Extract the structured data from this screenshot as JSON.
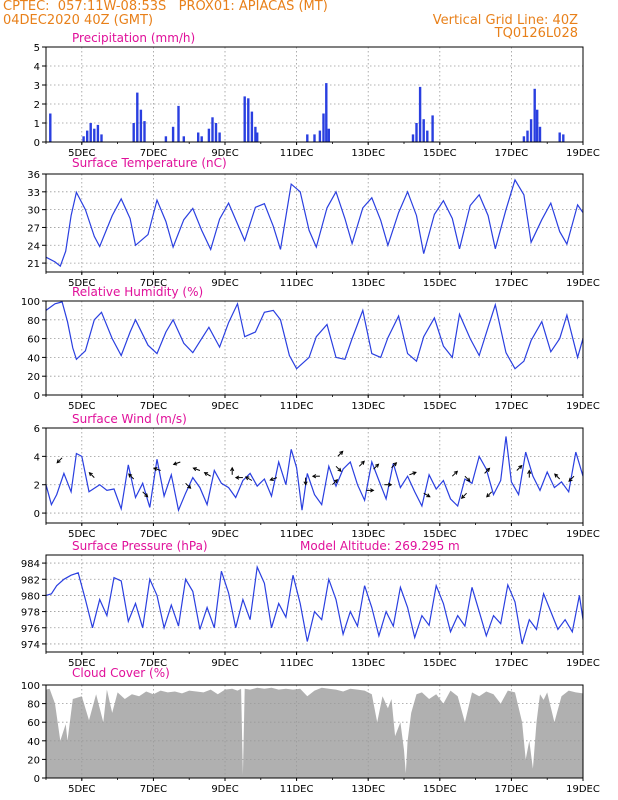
{
  "header": {
    "line1": "CPTEC:  057:11W-08:53S   PROX01: APIACAS (MT)",
    "line2": "04DEC2020 40Z (GMT)",
    "grid_note": "Vertical Grid Line: 40Z",
    "code": "TQ0126L028"
  },
  "colors": {
    "header": "#e8801a",
    "title": "#e0109a",
    "line": "#2a3fe0",
    "cloud": "#b0b0b0"
  },
  "chart_data": [
    {
      "type": "bar",
      "title": "Precipitation (mm/h)",
      "x_ticks": [
        "5DEC",
        "7DEC",
        "9DEC",
        "11DEC",
        "13DEC",
        "15DEC",
        "17DEC",
        "19DEC"
      ],
      "xlim_days": [
        4.0,
        19.0
      ],
      "ylim": [
        0,
        5
      ],
      "y_ticks": [
        "0",
        "1",
        "2",
        "3",
        "4",
        "5"
      ],
      "events": [
        {
          "day": 4.12,
          "value": 1.5
        },
        {
          "day": 5.05,
          "value": 0.3
        },
        {
          "day": 5.15,
          "value": 0.6
        },
        {
          "day": 5.25,
          "value": 1.0
        },
        {
          "day": 5.35,
          "value": 0.7
        },
        {
          "day": 5.45,
          "value": 0.9
        },
        {
          "day": 5.55,
          "value": 0.4
        },
        {
          "day": 6.45,
          "value": 1.0
        },
        {
          "day": 6.55,
          "value": 2.6
        },
        {
          "day": 6.65,
          "value": 1.7
        },
        {
          "day": 6.75,
          "value": 1.1
        },
        {
          "day": 7.35,
          "value": 0.3
        },
        {
          "day": 7.55,
          "value": 0.8
        },
        {
          "day": 7.7,
          "value": 1.9
        },
        {
          "day": 7.85,
          "value": 0.3
        },
        {
          "day": 8.25,
          "value": 0.5
        },
        {
          "day": 8.35,
          "value": 0.3
        },
        {
          "day": 8.55,
          "value": 0.7
        },
        {
          "day": 8.65,
          "value": 1.3
        },
        {
          "day": 8.75,
          "value": 1.0
        },
        {
          "day": 8.85,
          "value": 0.5
        },
        {
          "day": 9.55,
          "value": 2.4
        },
        {
          "day": 9.65,
          "value": 2.3
        },
        {
          "day": 9.75,
          "value": 1.6
        },
        {
          "day": 9.85,
          "value": 0.8
        },
        {
          "day": 9.9,
          "value": 0.5
        },
        {
          "day": 11.3,
          "value": 0.4
        },
        {
          "day": 11.5,
          "value": 0.4
        },
        {
          "day": 11.65,
          "value": 0.6
        },
        {
          "day": 11.75,
          "value": 1.5
        },
        {
          "day": 11.83,
          "value": 3.1
        },
        {
          "day": 11.9,
          "value": 0.7
        },
        {
          "day": 14.25,
          "value": 0.4
        },
        {
          "day": 14.35,
          "value": 1.0
        },
        {
          "day": 14.45,
          "value": 2.9
        },
        {
          "day": 14.55,
          "value": 1.2
        },
        {
          "day": 14.65,
          "value": 0.6
        },
        {
          "day": 14.8,
          "value": 1.4
        },
        {
          "day": 17.35,
          "value": 0.3
        },
        {
          "day": 17.45,
          "value": 0.6
        },
        {
          "day": 17.55,
          "value": 1.2
        },
        {
          "day": 17.65,
          "value": 2.8
        },
        {
          "day": 17.72,
          "value": 1.7
        },
        {
          "day": 17.8,
          "value": 0.8
        },
        {
          "day": 18.35,
          "value": 0.5
        },
        {
          "day": 18.45,
          "value": 0.4
        }
      ]
    },
    {
      "type": "line",
      "title": "Surface Temperature (nC)",
      "x_ticks": [
        "5DEC",
        "7DEC",
        "9DEC",
        "11DEC",
        "13DEC",
        "15DEC",
        "17DEC",
        "19DEC"
      ],
      "xlim_days": [
        4.0,
        19.0
      ],
      "ylim": [
        19.5,
        36
      ],
      "y_ticks": [
        "21",
        "24",
        "27",
        "30",
        "33",
        "36"
      ],
      "days": [
        4.0,
        4.25,
        4.4,
        4.55,
        4.7,
        4.85,
        5.1,
        5.35,
        5.5,
        5.85,
        6.1,
        6.35,
        6.5,
        6.85,
        7.1,
        7.35,
        7.55,
        7.85,
        8.1,
        8.35,
        8.6,
        8.85,
        9.1,
        9.35,
        9.55,
        9.85,
        10.1,
        10.35,
        10.55,
        10.85,
        11.1,
        11.35,
        11.55,
        11.85,
        12.1,
        12.35,
        12.55,
        12.85,
        13.1,
        13.35,
        13.55,
        13.85,
        14.1,
        14.35,
        14.55,
        14.85,
        15.1,
        15.35,
        15.55,
        15.85,
        16.1,
        16.35,
        16.55,
        16.85,
        17.1,
        17.35,
        17.55,
        17.85,
        18.1,
        18.35,
        18.55,
        18.85,
        19.0
      ],
      "values": [
        22.0,
        21.2,
        20.5,
        23.0,
        29.0,
        32.9,
        30.0,
        25.5,
        23.8,
        29.0,
        31.8,
        28.5,
        24.0,
        25.8,
        31.6,
        28.0,
        23.7,
        28.3,
        30.2,
        26.5,
        23.3,
        28.4,
        31.1,
        27.6,
        24.8,
        30.4,
        31.0,
        27.2,
        23.3,
        34.3,
        33.0,
        26.5,
        23.7,
        30.3,
        33.0,
        28.5,
        24.3,
        30.3,
        32.0,
        28.2,
        24.0,
        29.5,
        33.0,
        29.0,
        22.6,
        29.2,
        31.5,
        28.5,
        23.4,
        30.7,
        32.5,
        29.0,
        23.4,
        30.0,
        35.0,
        32.5,
        24.5,
        28.3,
        31.1,
        26.3,
        24.2,
        30.8,
        29.5
      ]
    },
    {
      "type": "line",
      "title": "Relative Humidity (%)",
      "x_ticks": [
        "5DEC",
        "7DEC",
        "9DEC",
        "11DEC",
        "13DEC",
        "15DEC",
        "17DEC",
        "19DEC"
      ],
      "xlim_days": [
        4.0,
        19.0
      ],
      "ylim": [
        0,
        100
      ],
      "y_ticks": [
        "0",
        "20",
        "40",
        "60",
        "80",
        "100"
      ],
      "days": [
        4.0,
        4.25,
        4.45,
        4.6,
        4.75,
        4.85,
        5.1,
        5.35,
        5.55,
        5.85,
        6.1,
        6.35,
        6.5,
        6.85,
        7.1,
        7.35,
        7.55,
        7.85,
        8.1,
        8.35,
        8.55,
        8.85,
        9.1,
        9.35,
        9.55,
        9.85,
        10.1,
        10.35,
        10.55,
        10.8,
        11.0,
        11.35,
        11.55,
        11.85,
        12.1,
        12.35,
        12.55,
        12.85,
        13.1,
        13.35,
        13.55,
        13.85,
        14.1,
        14.35,
        14.55,
        14.85,
        15.1,
        15.35,
        15.55,
        15.85,
        16.1,
        16.35,
        16.55,
        16.85,
        17.1,
        17.35,
        17.55,
        17.85,
        18.1,
        18.35,
        18.55,
        18.85,
        19.0
      ],
      "values": [
        90,
        97,
        99,
        78,
        50,
        38,
        47,
        80,
        88,
        60,
        42,
        67,
        80,
        53,
        44,
        67,
        80,
        55,
        45,
        60,
        72,
        51,
        77,
        97,
        62,
        67,
        88,
        90,
        80,
        42,
        28,
        40,
        62,
        75,
        40,
        38,
        60,
        90,
        44,
        40,
        61,
        84,
        44,
        36,
        62,
        82,
        52,
        40,
        86,
        60,
        42,
        72,
        96,
        45,
        28,
        36,
        58,
        78,
        46,
        60,
        85,
        40,
        60
      ]
    },
    {
      "type": "line",
      "title": "Surface Wind (m/s)",
      "x_ticks": [
        "5DEC",
        "7DEC",
        "9DEC",
        "11DEC",
        "13DEC",
        "15DEC",
        "17DEC",
        "19DEC"
      ],
      "xlim_days": [
        4.0,
        19.0
      ],
      "ylim": [
        -0.7,
        6
      ],
      "y_ticks": [
        "0",
        "2",
        "4",
        "6"
      ],
      "days": [
        4.0,
        4.15,
        4.3,
        4.5,
        4.7,
        4.85,
        5.0,
        5.2,
        5.5,
        5.7,
        5.9,
        6.1,
        6.3,
        6.5,
        6.7,
        6.9,
        7.1,
        7.3,
        7.5,
        7.7,
        7.9,
        8.1,
        8.3,
        8.5,
        8.7,
        8.9,
        9.1,
        9.3,
        9.5,
        9.7,
        9.9,
        10.1,
        10.3,
        10.5,
        10.7,
        10.85,
        11.0,
        11.15,
        11.3,
        11.5,
        11.7,
        11.9,
        12.1,
        12.3,
        12.5,
        12.7,
        12.9,
        13.1,
        13.3,
        13.5,
        13.7,
        13.9,
        14.1,
        14.3,
        14.5,
        14.7,
        14.9,
        15.1,
        15.3,
        15.5,
        15.7,
        15.9,
        16.1,
        16.3,
        16.5,
        16.7,
        16.85,
        17.0,
        17.2,
        17.4,
        17.6,
        17.8,
        18.0,
        18.2,
        18.4,
        18.6,
        18.8,
        19.0
      ],
      "values": [
        2.0,
        0.6,
        1.3,
        2.8,
        1.5,
        4.2,
        4.0,
        1.5,
        2.0,
        1.6,
        1.7,
        0.3,
        3.4,
        1.1,
        2.1,
        0.4,
        3.8,
        1.2,
        2.7,
        0.2,
        1.4,
        2.5,
        1.8,
        0.6,
        3.0,
        2.1,
        1.8,
        1.1,
        2.3,
        2.8,
        1.9,
        2.4,
        1.2,
        3.6,
        2.0,
        4.5,
        3.2,
        0.2,
        2.8,
        1.3,
        0.6,
        3.3,
        1.9,
        3.1,
        3.6,
        2.0,
        0.9,
        3.6,
        2.3,
        1.0,
        3.5,
        1.8,
        2.6,
        1.5,
        0.5,
        2.7,
        1.7,
        2.3,
        1.0,
        0.5,
        2.4,
        2.1,
        4.0,
        3.1,
        1.3,
        2.3,
        5.4,
        2.2,
        1.3,
        4.3,
        2.6,
        1.6,
        2.9,
        1.8,
        2.2,
        1.5,
        4.3,
        2.6
      ]
    },
    {
      "type": "line",
      "title": "Surface Pressure (hPa)",
      "annotation": "Model Altitude: 269.295 m",
      "x_ticks": [
        "5DEC",
        "7DEC",
        "9DEC",
        "11DEC",
        "13DEC",
        "15DEC",
        "17DEC",
        "19DEC"
      ],
      "xlim_days": [
        4.0,
        19.0
      ],
      "ylim": [
        973,
        985
      ],
      "y_ticks": [
        "974",
        "976",
        "978",
        "980",
        "982",
        "984"
      ],
      "days": [
        4.0,
        4.15,
        4.3,
        4.5,
        4.7,
        4.9,
        5.1,
        5.3,
        5.5,
        5.7,
        5.9,
        6.1,
        6.3,
        6.5,
        6.7,
        6.9,
        7.1,
        7.3,
        7.5,
        7.7,
        7.9,
        8.1,
        8.3,
        8.5,
        8.7,
        8.9,
        9.1,
        9.3,
        9.5,
        9.7,
        9.9,
        10.1,
        10.3,
        10.5,
        10.7,
        10.9,
        11.1,
        11.3,
        11.5,
        11.7,
        11.9,
        12.1,
        12.3,
        12.5,
        12.7,
        12.9,
        13.1,
        13.3,
        13.5,
        13.7,
        13.9,
        14.1,
        14.3,
        14.5,
        14.7,
        14.9,
        15.1,
        15.3,
        15.5,
        15.7,
        15.9,
        16.1,
        16.3,
        16.5,
        16.7,
        16.9,
        17.1,
        17.3,
        17.5,
        17.7,
        17.9,
        18.1,
        18.3,
        18.5,
        18.7,
        18.9,
        19.0
      ],
      "values": [
        980,
        980.2,
        981.2,
        982.0,
        982.5,
        982.8,
        979.5,
        976.0,
        979.5,
        977.5,
        982.2,
        981.8,
        976.8,
        979.0,
        976.0,
        982.0,
        980.0,
        976.0,
        978.8,
        976.2,
        982.0,
        980.5,
        975.8,
        978.5,
        976.0,
        983.0,
        980.3,
        976.0,
        979.5,
        977.0,
        983.5,
        981.5,
        976.0,
        979.0,
        977.3,
        982.5,
        979.0,
        974.3,
        978.0,
        977.0,
        982.0,
        979.5,
        975.2,
        978.0,
        976.2,
        981.2,
        978.5,
        975.0,
        978.0,
        976.2,
        981.0,
        978.5,
        974.8,
        977.5,
        976.3,
        981.2,
        979.0,
        975.5,
        977.5,
        976.2,
        981.0,
        978.0,
        975.0,
        977.5,
        976.5,
        981.3,
        979.2,
        974.0,
        977.0,
        975.8,
        980.2,
        978.0,
        975.8,
        977.0,
        975.5,
        980.0,
        977.0
      ]
    },
    {
      "type": "area",
      "title": "Cloud Cover (%)",
      "x_ticks": [
        "5DEC",
        "7DEC",
        "9DEC",
        "11DEC",
        "13DEC",
        "15DEC",
        "17DEC",
        "19DEC"
      ],
      "xlim_days": [
        4.0,
        19.0
      ],
      "ylim": [
        0,
        100
      ],
      "y_ticks": [
        "0",
        "20",
        "40",
        "60",
        "80",
        "100"
      ],
      "days": [
        4.0,
        4.1,
        4.25,
        4.4,
        4.55,
        4.6,
        4.75,
        5.0,
        5.2,
        5.4,
        5.6,
        5.7,
        5.85,
        6.0,
        6.2,
        6.4,
        6.6,
        6.8,
        7.0,
        7.2,
        7.4,
        7.6,
        7.8,
        8.0,
        8.2,
        8.4,
        8.6,
        8.8,
        9.0,
        9.2,
        9.35,
        9.45,
        9.5,
        9.55,
        9.7,
        9.9,
        10.1,
        10.3,
        10.5,
        10.7,
        10.9,
        11.1,
        11.3,
        11.5,
        11.7,
        11.9,
        12.1,
        12.3,
        12.5,
        12.7,
        12.9,
        13.1,
        13.25,
        13.4,
        13.55,
        13.65,
        13.75,
        13.9,
        14.0,
        14.05,
        14.1,
        14.2,
        14.35,
        14.5,
        14.7,
        14.9,
        15.1,
        15.3,
        15.5,
        15.7,
        15.9,
        16.1,
        16.3,
        16.5,
        16.7,
        16.9,
        17.1,
        17.3,
        17.4,
        17.5,
        17.6,
        17.7,
        17.8,
        17.9,
        18.0,
        18.2,
        18.4,
        18.6,
        18.8,
        19.0
      ],
      "values": [
        95,
        96,
        80,
        40,
        58,
        40,
        85,
        88,
        62,
        90,
        60,
        95,
        70,
        92,
        85,
        90,
        88,
        93,
        90,
        94,
        92,
        93,
        91,
        94,
        93,
        92,
        95,
        90,
        95,
        96,
        94,
        96,
        3,
        96,
        95,
        97,
        96,
        97,
        95,
        96,
        95,
        96,
        88,
        94,
        97,
        96,
        95,
        93,
        96,
        95,
        94,
        90,
        60,
        88,
        75,
        85,
        45,
        60,
        30,
        5,
        40,
        70,
        90,
        92,
        85,
        90,
        80,
        94,
        88,
        60,
        92,
        88,
        93,
        90,
        80,
        94,
        92,
        60,
        20,
        40,
        10,
        60,
        90,
        84,
        92,
        60,
        88,
        94,
        92,
        91
      ]
    }
  ],
  "wind_arrows": [
    {
      "day": 4.45,
      "value": 3.9,
      "dir": 225
    },
    {
      "day": 5.35,
      "value": 2.5,
      "dir": 135
    },
    {
      "day": 6.45,
      "value": 2.4,
      "dir": 135
    },
    {
      "day": 6.7,
      "value": 1.5,
      "dir": 315
    },
    {
      "day": 7.2,
      "value": 3.0,
      "dir": 160
    },
    {
      "day": 7.75,
      "value": 3.6,
      "dir": 200
    },
    {
      "day": 7.9,
      "value": 2.1,
      "dir": 315
    },
    {
      "day": 8.3,
      "value": 3.0,
      "dir": 160
    },
    {
      "day": 8.6,
      "value": 2.6,
      "dir": 150
    },
    {
      "day": 9.2,
      "value": 2.7,
      "dir": 90
    },
    {
      "day": 9.5,
      "value": 2.5,
      "dir": 180
    },
    {
      "day": 9.75,
      "value": 2.3,
      "dir": 150
    },
    {
      "day": 10.45,
      "value": 2.5,
      "dir": 200
    },
    {
      "day": 11.25,
      "value": 2.5,
      "dir": 270
    },
    {
      "day": 11.65,
      "value": 2.6,
      "dir": 180
    },
    {
      "day": 12.0,
      "value": 2.0,
      "dir": 45
    },
    {
      "day": 12.1,
      "value": 3.3,
      "dir": 315
    },
    {
      "day": 12.15,
      "value": 4.0,
      "dir": 45
    },
    {
      "day": 12.75,
      "value": 3.3,
      "dir": 45
    },
    {
      "day": 12.95,
      "value": 1.6,
      "dir": 0
    },
    {
      "day": 13.15,
      "value": 3.1,
      "dir": 45
    },
    {
      "day": 13.45,
      "value": 2.0,
      "dir": 0
    },
    {
      "day": 13.65,
      "value": 3.2,
      "dir": 45
    },
    {
      "day": 14.15,
      "value": 2.7,
      "dir": 20
    },
    {
      "day": 14.55,
      "value": 1.4,
      "dir": 330
    },
    {
      "day": 15.35,
      "value": 2.6,
      "dir": 45
    },
    {
      "day": 15.7,
      "value": 2.6,
      "dir": 315
    },
    {
      "day": 15.75,
      "value": 1.4,
      "dir": 225
    },
    {
      "day": 16.25,
      "value": 2.8,
      "dir": 45
    },
    {
      "day": 16.45,
      "value": 1.5,
      "dir": 225
    },
    {
      "day": 17.15,
      "value": 3.0,
      "dir": 45
    },
    {
      "day": 17.5,
      "value": 2.5,
      "dir": 90
    },
    {
      "day": 18.35,
      "value": 2.4,
      "dir": 135
    },
    {
      "day": 18.75,
      "value": 2.6,
      "dir": 225
    }
  ]
}
